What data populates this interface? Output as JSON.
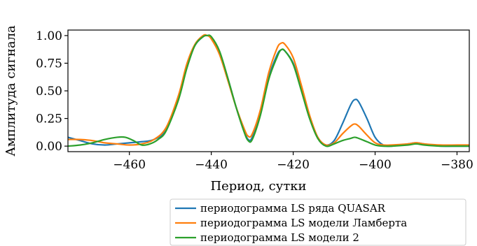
{
  "chart_data": {
    "type": "line",
    "title": "",
    "xlabel": "Период, сутки",
    "ylabel": "Амплитуда сигнала",
    "xlim": [
      -475,
      -377
    ],
    "ylim": [
      -0.05,
      1.05
    ],
    "xticks": [
      -460,
      -440,
      -420,
      -400,
      -380
    ],
    "xtick_labels": [
      "−460",
      "−440",
      "−420",
      "−400",
      "−380"
    ],
    "yticks": [
      0.0,
      0.25,
      0.5,
      0.75,
      1.0
    ],
    "ytick_labels": [
      "0.00",
      "0.25",
      "0.50",
      "0.75",
      "1.00"
    ],
    "grid": false,
    "legend_position": "bottom-right, below axes",
    "series": [
      {
        "name": "периодограмма LS ряда QUASAR",
        "color": "#1f77b4",
        "x": [
          -475,
          -472,
          -469,
          -466,
          -463,
          -460,
          -457,
          -454,
          -451,
          -448,
          -446,
          -444,
          -442,
          -441,
          -440,
          -438,
          -436,
          -434,
          -432,
          -431,
          -430,
          -428,
          -426,
          -424,
          -423,
          -422,
          -420,
          -418,
          -416,
          -414,
          -412,
          -410,
          -408,
          -406,
          -405,
          -404,
          -402,
          -400,
          -398,
          -396,
          -392,
          -390,
          -388,
          -384,
          -380,
          -377
        ],
        "y": [
          0.08,
          0.05,
          0.02,
          0.01,
          0.02,
          0.03,
          0.04,
          0.06,
          0.15,
          0.45,
          0.72,
          0.91,
          0.99,
          1.0,
          0.98,
          0.85,
          0.62,
          0.36,
          0.14,
          0.06,
          0.08,
          0.3,
          0.62,
          0.82,
          0.87,
          0.86,
          0.75,
          0.52,
          0.27,
          0.08,
          0.01,
          0.05,
          0.2,
          0.37,
          0.42,
          0.4,
          0.25,
          0.08,
          0.01,
          0.0,
          0.02,
          0.03,
          0.02,
          0.0,
          0.0,
          0.0
        ]
      },
      {
        "name": "периодограмма LS модели Ламберта",
        "color": "#ff7f0e",
        "x": [
          -475,
          -472,
          -469,
          -466,
          -463,
          -460,
          -457,
          -454,
          -451,
          -448,
          -446,
          -444,
          -442,
          -441,
          -440,
          -438,
          -436,
          -434,
          -432,
          -431,
          -430,
          -428,
          -426,
          -424,
          -423,
          -422,
          -420,
          -418,
          -416,
          -414,
          -412,
          -410,
          -408,
          -406,
          -405,
          -404,
          -402,
          -400,
          -398,
          -396,
          -392,
          -390,
          -388,
          -384,
          -380,
          -377
        ],
        "y": [
          0.06,
          0.06,
          0.05,
          0.03,
          0.02,
          0.01,
          0.02,
          0.06,
          0.17,
          0.46,
          0.74,
          0.92,
          1.0,
          1.0,
          0.97,
          0.83,
          0.6,
          0.36,
          0.16,
          0.09,
          0.11,
          0.33,
          0.66,
          0.88,
          0.93,
          0.92,
          0.8,
          0.55,
          0.28,
          0.08,
          0.01,
          0.03,
          0.11,
          0.18,
          0.2,
          0.18,
          0.1,
          0.03,
          0.01,
          0.01,
          0.02,
          0.03,
          0.02,
          0.01,
          0.01,
          0.01
        ]
      },
      {
        "name": "периодограмма LS модели 2",
        "color": "#2ca02c",
        "x": [
          -475,
          -472,
          -469,
          -466,
          -463,
          -461,
          -459,
          -457,
          -455,
          -453,
          -451,
          -448,
          -446,
          -444,
          -442,
          -441,
          -440,
          -438,
          -436,
          -434,
          -432,
          -431,
          -430,
          -428,
          -426,
          -424,
          -423,
          -422,
          -420,
          -418,
          -416,
          -414,
          -412,
          -410,
          -408,
          -406,
          -405,
          -404,
          -402,
          -400,
          -398,
          -396,
          -392,
          -390,
          -388,
          -384,
          -380,
          -377
        ],
        "y": [
          0.0,
          0.01,
          0.03,
          0.06,
          0.08,
          0.08,
          0.05,
          0.01,
          0.02,
          0.06,
          0.14,
          0.42,
          0.7,
          0.91,
          0.99,
          1.0,
          0.99,
          0.86,
          0.62,
          0.36,
          0.13,
          0.05,
          0.06,
          0.28,
          0.6,
          0.8,
          0.87,
          0.86,
          0.74,
          0.5,
          0.25,
          0.07,
          0.0,
          0.02,
          0.05,
          0.07,
          0.08,
          0.07,
          0.04,
          0.01,
          0.0,
          0.0,
          0.01,
          0.02,
          0.01,
          0.0,
          0.0,
          0.0
        ]
      }
    ]
  }
}
